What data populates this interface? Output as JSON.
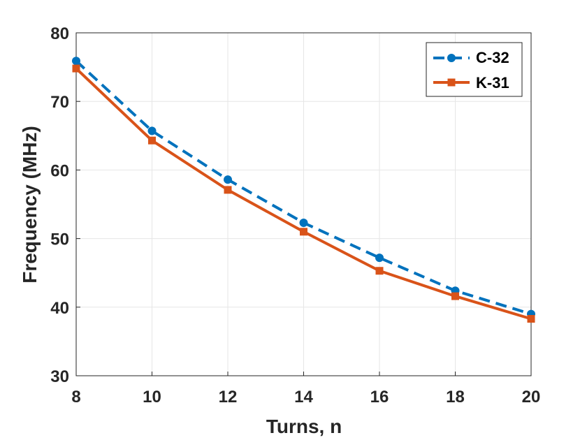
{
  "chart_data": {
    "type": "line",
    "title": "",
    "xlabel": "Turns, n",
    "ylabel": "Frequency (MHz)",
    "xlim": [
      8,
      20
    ],
    "ylim": [
      30,
      80
    ],
    "x_ticks": [
      8,
      10,
      12,
      14,
      16,
      18,
      20
    ],
    "y_ticks": [
      30,
      40,
      50,
      60,
      70,
      80
    ],
    "grid": true,
    "legend_position": "top-right",
    "x": [
      8,
      10,
      12,
      14,
      16,
      18,
      20
    ],
    "series": [
      {
        "name": "C-32",
        "values": [
          75.9,
          65.7,
          58.6,
          52.3,
          47.2,
          42.4,
          39.0
        ],
        "color": "#0072BD",
        "line_style": "dashed",
        "marker": "circle"
      },
      {
        "name": "K-31",
        "values": [
          74.8,
          64.3,
          57.1,
          51.0,
          45.3,
          41.6,
          38.3
        ],
        "color": "#D95319",
        "line_style": "solid",
        "marker": "square"
      }
    ]
  }
}
